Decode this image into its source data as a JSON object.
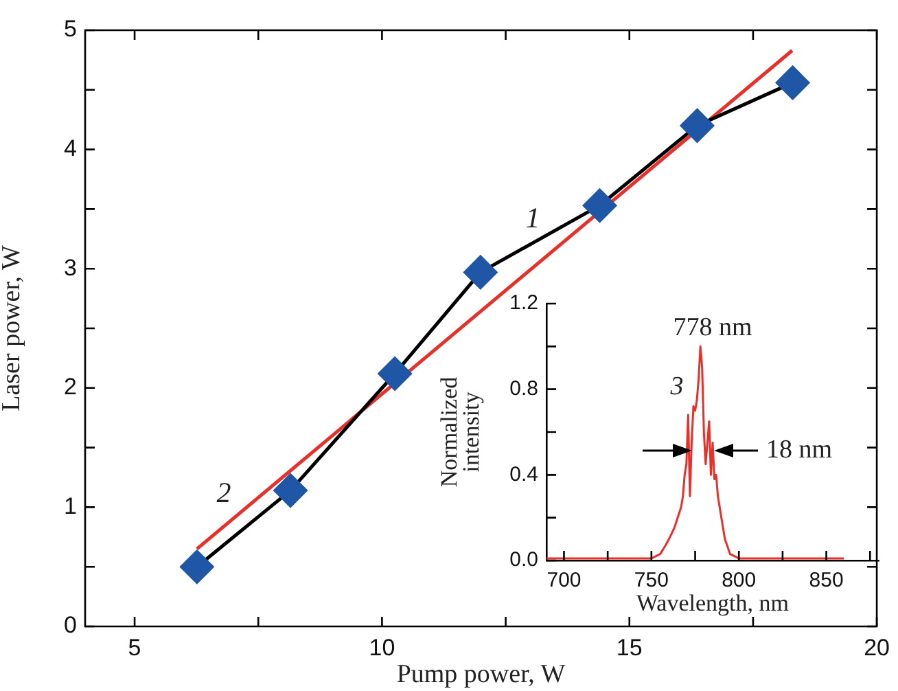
{
  "chart_data": [
    {
      "type": "line",
      "xlabel": "Pump power, W",
      "ylabel": "Laser power, W",
      "xlim": [
        4,
        20
      ],
      "xticks": [
        5,
        {
          "value": 7.5,
          "label": null
        },
        10,
        {
          "value": 12.5,
          "label": null
        },
        15,
        {
          "value": 17.5,
          "label": null
        },
        20
      ],
      "ylim": [
        0,
        5
      ],
      "yticks": [
        0,
        {
          "value": 0.5,
          "label": null
        },
        1,
        {
          "value": 1.5,
          "label": null
        },
        2,
        {
          "value": 2.5,
          "label": null
        },
        3,
        {
          "value": 3.5,
          "label": null
        },
        4,
        {
          "value": 4.5,
          "label": null
        },
        5
      ],
      "legend": false,
      "grid": false,
      "series": [
        {
          "type": "line",
          "name": "1",
          "color": "#000000",
          "colors": [
            "#1f56a5",
            "#1f56a5",
            "#1f56a5",
            "#1f56a5",
            "#1f56a5",
            "#1f56a5",
            "#1f56a5"
          ],
          "marker": "diamond",
          "x": [
            6.26,
            8.15,
            10.26,
            11.99,
            14.4,
            16.37,
            18.3
          ],
          "values": [
            0.5,
            1.14,
            2.12,
            2.97,
            3.53,
            4.2,
            4.56
          ]
        },
        {
          "type": "line",
          "name": "2",
          "color": "#e8302a",
          "marker": "none",
          "x": [
            6.26,
            18.29
          ],
          "values": [
            0.65,
            4.83
          ]
        }
      ]
    },
    {
      "type": "line",
      "xlabel": "Wavelength, nm",
      "ylabel": "Normalized intensity",
      "xlim": [
        690,
        880
      ],
      "xticks": [
        700,
        {
          "value": 725,
          "label": null
        },
        750,
        {
          "value": 775,
          "label": null
        },
        800,
        {
          "value": 825,
          "label": null
        },
        850,
        {
          "value": 875,
          "label": null
        }
      ],
      "ylim": [
        0,
        1.2
      ],
      "yticks": [
        {
          "value": 0,
          "label": "0.0"
        },
        {
          "value": 0.2,
          "label": null
        },
        0.4,
        {
          "value": 0.6,
          "label": null
        },
        0.8,
        {
          "value": 1.0,
          "label": null
        },
        1.2
      ],
      "legend": false,
      "grid": false,
      "series": [
        {
          "type": "line",
          "name": "3",
          "color": "#e8302a",
          "marker": "none",
          "x": [
            690,
            720,
            750,
            755,
            758,
            760,
            763,
            765,
            767,
            768,
            769,
            770,
            771,
            772,
            773,
            774,
            775,
            776,
            777,
            778,
            779,
            780,
            781,
            782,
            783,
            784,
            785,
            786,
            787,
            788,
            789,
            790,
            792,
            795,
            800,
            830,
            860
          ],
          "values": [
            0.01,
            0.01,
            0.01,
            0.03,
            0.07,
            0.1,
            0.15,
            0.2,
            0.25,
            0.3,
            0.4,
            0.45,
            0.68,
            0.3,
            0.55,
            0.72,
            0.7,
            0.75,
            0.85,
            1.0,
            0.9,
            0.6,
            0.45,
            0.55,
            0.65,
            0.4,
            0.55,
            0.38,
            0.4,
            0.3,
            0.25,
            0.2,
            0.1,
            0.03,
            0.01,
            0.01,
            0.01
          ]
        }
      ],
      "annotations": [
        "778 nm",
        "18 nm"
      ]
    }
  ]
}
